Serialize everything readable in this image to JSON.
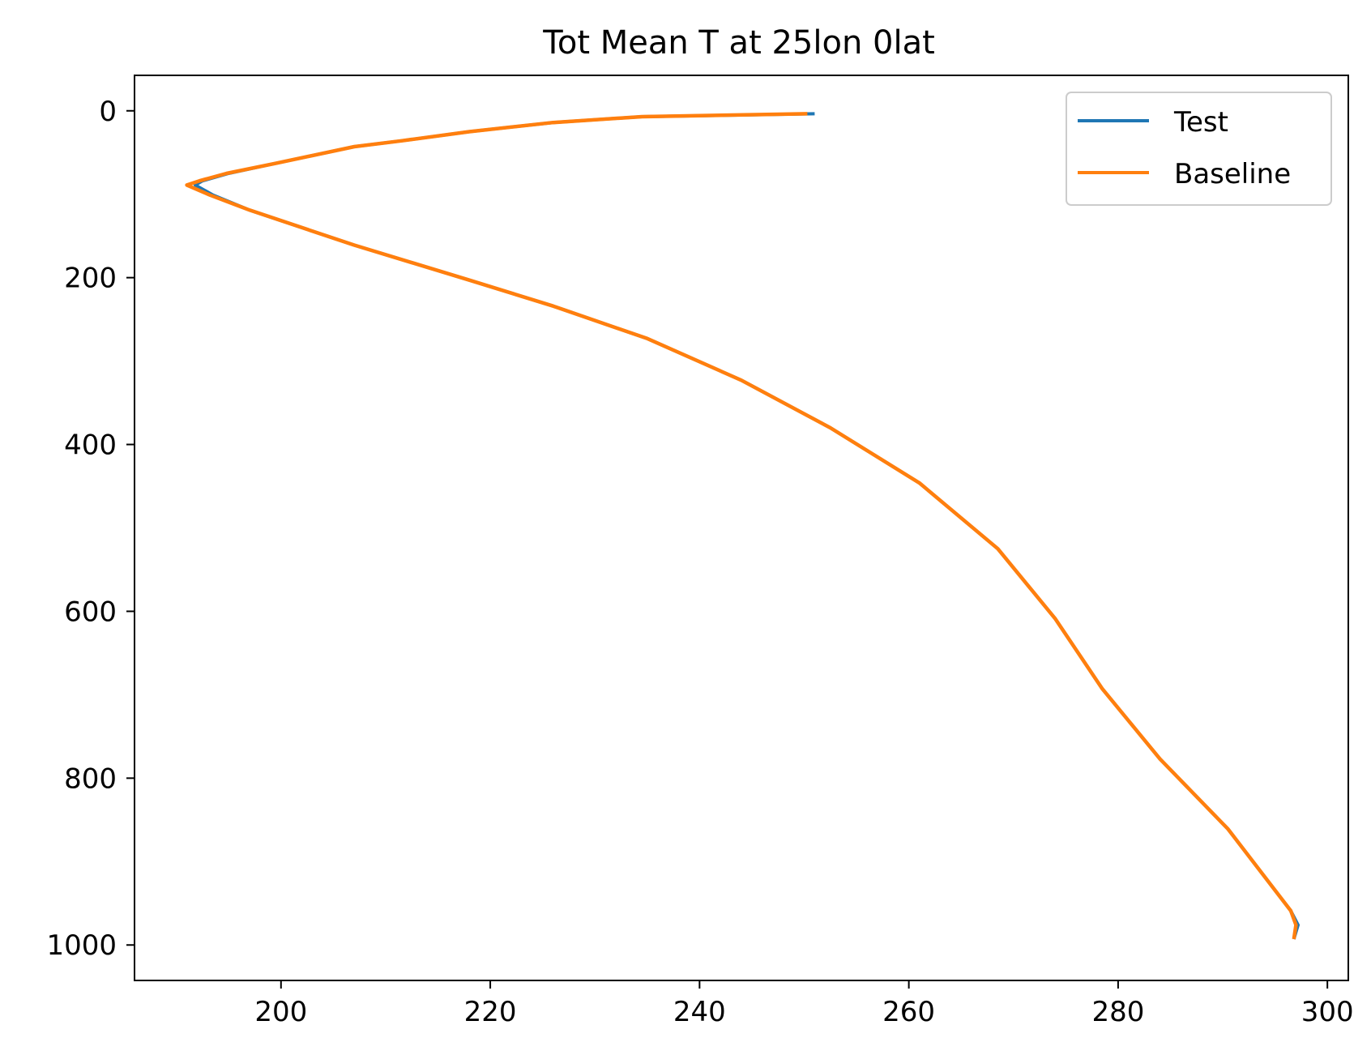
{
  "chart_data": {
    "type": "line",
    "title": "Tot Mean T at 25lon 0lat",
    "xlabel": "",
    "ylabel": "",
    "xlim": [
      186,
      302
    ],
    "ylim": [
      1042.5,
      -42.5
    ],
    "y_inverted": true,
    "xticks": [
      200,
      220,
      240,
      260,
      280,
      300
    ],
    "yticks": [
      0,
      200,
      400,
      600,
      800,
      1000
    ],
    "grid": false,
    "legend": {
      "position": "top-right",
      "entries": [
        "Test",
        "Baseline"
      ]
    },
    "series": [
      {
        "name": "Test",
        "color": "#1f77b4",
        "x": [
          251,
          234.5,
          226,
          218,
          211.5,
          207,
          199.5,
          195,
          192.5,
          191.8,
          193.5,
          197,
          207,
          218,
          226,
          235,
          244,
          252.5,
          261,
          268.5,
          274,
          278.5,
          284,
          290.5,
          296.5,
          297.2,
          296.8
        ],
        "y": [
          3.5,
          7,
          14,
          25,
          36,
          43,
          63,
          75,
          84,
          89,
          101,
          119,
          161,
          203,
          234,
          273,
          323,
          380,
          446,
          525,
          609,
          693,
          777,
          861,
          959,
          976,
          993
        ]
      },
      {
        "name": "Baseline",
        "color": "#ff7f0e",
        "x": [
          250.3,
          234.5,
          226,
          218,
          211.5,
          207,
          199.5,
          194.8,
          192.2,
          191,
          193.2,
          197,
          207,
          218,
          226,
          235,
          244,
          252.5,
          261,
          268.5,
          274,
          278.5,
          284,
          290.5,
          296.5,
          297,
          296.8
        ],
        "y": [
          3.5,
          7,
          14,
          25,
          36,
          43,
          63,
          75,
          84,
          89,
          101,
          119,
          161,
          203,
          234,
          273,
          323,
          380,
          446,
          525,
          609,
          693,
          777,
          861,
          959,
          976,
          993
        ]
      }
    ]
  }
}
